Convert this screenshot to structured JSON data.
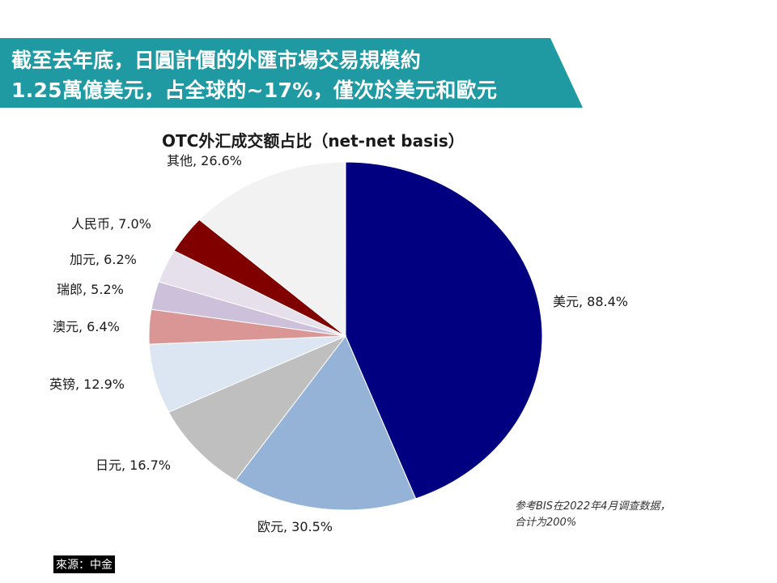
{
  "banner": {
    "line1": "截至去年底，日圓計價的外匯市場交易規模約",
    "line2": "1.25萬億美元，占全球的~17%，僅次於美元和歐元",
    "color": "#1f9aa3"
  },
  "note": {
    "line1": "参考BIS在2022年4月调查数据，",
    "line2": "合计为200%"
  },
  "source": "來源：中金",
  "chart_data": {
    "type": "pie",
    "title": "OTC外汇成交额占比（net-net basis）",
    "total": 200,
    "slices": [
      {
        "label": "美元, 88.4%",
        "value": 88.4,
        "color": "#000080"
      },
      {
        "label": "欧元, 30.5%",
        "value": 30.5,
        "color": "#95b3d7"
      },
      {
        "label": "日元, 16.7%",
        "value": 16.7,
        "color": "#bfbfbf"
      },
      {
        "label": "英镑, 12.9%",
        "value": 12.9,
        "color": "#dce6f2"
      },
      {
        "label": "澳元, 6.4%",
        "value": 6.4,
        "color": "#da9694"
      },
      {
        "label": "瑞郎, 5.2%",
        "value": 5.2,
        "color": "#ccc0da"
      },
      {
        "label": "加元, 6.2%",
        "value": 6.2,
        "color": "#e6e0ec"
      },
      {
        "label": "人民币, 7.0%",
        "value": 7.0,
        "color": "#800000"
      },
      {
        "label": "其他, 26.6%",
        "value": 26.6,
        "color": "#f2f2f2"
      }
    ]
  }
}
